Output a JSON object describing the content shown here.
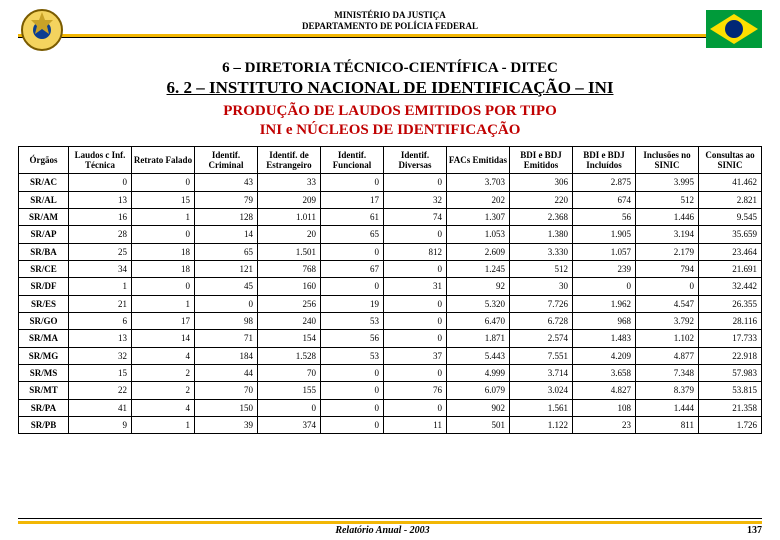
{
  "header": {
    "line1": "MINISTÉRIO DA JUSTIÇA",
    "line2": "DEPARTAMENTO DE POLÍCIA FEDERAL"
  },
  "section_line": "6 – DIRETORIA TÉCNICO-CIENTÍFICA - DITEC",
  "subsection_line": "6. 2 – INSTITUTO NACIONAL DE IDENTIFICAÇÃO – INI",
  "title_line1": "PRODUÇÃO DE LAUDOS EMITIDOS POR  TIPO",
  "title_line2": "INI e NÚCLEOS DE IDENTIFICAÇÃO",
  "columns": [
    "Órgãos",
    "Laudos c Inf. Técnica",
    "Retrato Falado",
    "Identif. Criminal",
    "Identif. de Estrangeiro",
    "Identif. Funcional",
    "Identif. Diversas",
    "FACs Emitidas",
    "BDI e BDJ Emitidos",
    "BDI e BDJ Incluídos",
    "Inclusões no SINIC",
    "Consultas ao SINIC"
  ],
  "rows": [
    {
      "org": "SR/AC",
      "v": [
        "0",
        "0",
        "43",
        "33",
        "0",
        "0",
        "3.703",
        "306",
        "2.875",
        "3.995",
        "41.462"
      ]
    },
    {
      "org": "SR/AL",
      "v": [
        "13",
        "15",
        "79",
        "209",
        "17",
        "32",
        "202",
        "220",
        "674",
        "512",
        "2.821"
      ]
    },
    {
      "org": "SR/AM",
      "v": [
        "16",
        "1",
        "128",
        "1.011",
        "61",
        "74",
        "1.307",
        "2.368",
        "56",
        "1.446",
        "9.545"
      ]
    },
    {
      "org": "SR/AP",
      "v": [
        "28",
        "0",
        "14",
        "20",
        "65",
        "0",
        "1.053",
        "1.380",
        "1.905",
        "3.194",
        "35.659"
      ]
    },
    {
      "org": "SR/BA",
      "v": [
        "25",
        "18",
        "65",
        "1.501",
        "0",
        "812",
        "2.609",
        "3.330",
        "1.057",
        "2.179",
        "23.464"
      ]
    },
    {
      "org": "SR/CE",
      "v": [
        "34",
        "18",
        "121",
        "768",
        "67",
        "0",
        "1.245",
        "512",
        "239",
        "794",
        "21.691"
      ]
    },
    {
      "org": "SR/DF",
      "v": [
        "1",
        "0",
        "45",
        "160",
        "0",
        "31",
        "92",
        "30",
        "0",
        "0",
        "32.442"
      ]
    },
    {
      "org": "SR/ES",
      "v": [
        "21",
        "1",
        "0",
        "256",
        "19",
        "0",
        "5.320",
        "7.726",
        "1.962",
        "4.547",
        "26.355"
      ]
    },
    {
      "org": "SR/GO",
      "v": [
        "6",
        "17",
        "98",
        "240",
        "53",
        "0",
        "6.470",
        "6.728",
        "968",
        "3.792",
        "28.116"
      ]
    },
    {
      "org": "SR/MA",
      "v": [
        "13",
        "14",
        "71",
        "154",
        "56",
        "0",
        "1.871",
        "2.574",
        "1.483",
        "1.102",
        "17.733"
      ]
    },
    {
      "org": "SR/MG",
      "v": [
        "32",
        "4",
        "184",
        "1.528",
        "53",
        "37",
        "5.443",
        "7.551",
        "4.209",
        "4.877",
        "22.918"
      ]
    },
    {
      "org": "SR/MS",
      "v": [
        "15",
        "2",
        "44",
        "70",
        "0",
        "0",
        "4.999",
        "3.714",
        "3.658",
        "7.348",
        "57.983"
      ]
    },
    {
      "org": "SR/MT",
      "v": [
        "22",
        "2",
        "70",
        "155",
        "0",
        "76",
        "6.079",
        "3.024",
        "4.827",
        "8.379",
        "53.815"
      ]
    },
    {
      "org": "SR/PA",
      "v": [
        "41",
        "4",
        "150",
        "0",
        "0",
        "0",
        "902",
        "1.561",
        "108",
        "1.444",
        "21.358"
      ]
    },
    {
      "org": "SR/PB",
      "v": [
        "9",
        "1",
        "39",
        "374",
        "0",
        "11",
        "501",
        "1.122",
        "23",
        "811",
        "1.726"
      ]
    }
  ],
  "footer": {
    "report": "Relatório Anual - 2003",
    "page": "137"
  },
  "colors": {
    "accent": "#f2b705",
    "title": "#c00000"
  }
}
